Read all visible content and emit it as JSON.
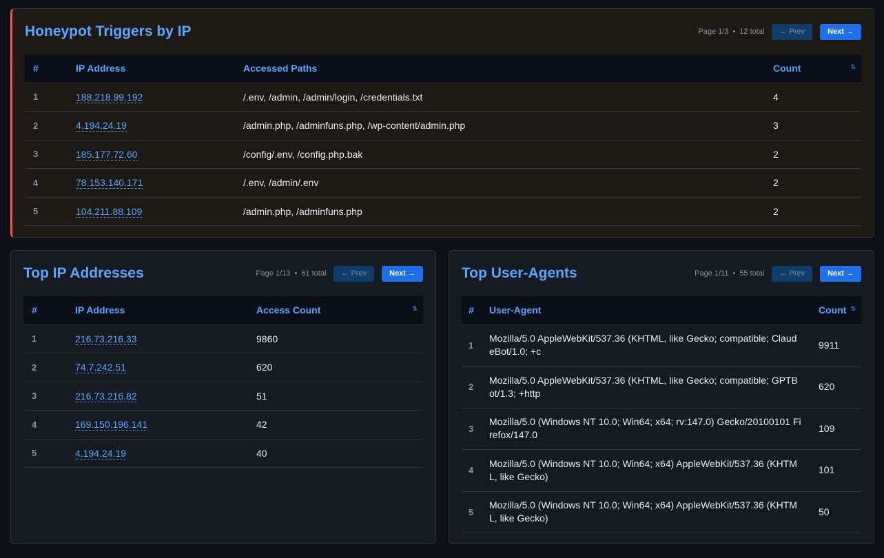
{
  "honeypot": {
    "title": "Honeypot Triggers by IP",
    "page": "Page 1/3",
    "total": "12 total",
    "prev": "← Prev",
    "next": "Next →",
    "columns": [
      "#",
      "IP Address",
      "Accessed Paths",
      "Count"
    ],
    "rows": [
      {
        "rank": "1",
        "ip": "188.218.99.192",
        "paths": "/.env, /admin, /admin/login, /credentials.txt",
        "count": "4"
      },
      {
        "rank": "2",
        "ip": "4.194.24.19",
        "paths": "/admin.php, /adminfuns.php, /wp-content/admin.php",
        "count": "3"
      },
      {
        "rank": "3",
        "ip": "185.177.72.60",
        "paths": "/config/.env, /config.php.bak",
        "count": "2"
      },
      {
        "rank": "4",
        "ip": "78.153.140.171",
        "paths": "/.env, /admin/.env",
        "count": "2"
      },
      {
        "rank": "5",
        "ip": "104.211.88.109",
        "paths": "/admin.php, /adminfuns.php",
        "count": "2"
      }
    ]
  },
  "top_ips": {
    "title": "Top IP Addresses",
    "page": "Page 1/13",
    "total": "61 total",
    "prev": "← Prev",
    "next": "Next →",
    "columns": [
      "#",
      "IP Address",
      "Access Count"
    ],
    "rows": [
      {
        "rank": "1",
        "ip": "216.73.216.33",
        "count": "9860"
      },
      {
        "rank": "2",
        "ip": "74.7.242.51",
        "count": "620"
      },
      {
        "rank": "3",
        "ip": "216.73.216.82",
        "count": "51"
      },
      {
        "rank": "4",
        "ip": "169.150.196.141",
        "count": "42"
      },
      {
        "rank": "5",
        "ip": "4.194.24.19",
        "count": "40"
      }
    ]
  },
  "top_uas": {
    "title": "Top User-Agents",
    "page": "Page 1/11",
    "total": "55 total",
    "prev": "← Prev",
    "next": "Next →",
    "columns": [
      "#",
      "User-Agent",
      "Count"
    ],
    "rows": [
      {
        "rank": "1",
        "ua": "Mozilla/5.0 AppleWebKit/537.36 (KHTML, like Gecko; compatible; ClaudeBot/1.0; +c",
        "count": "9911"
      },
      {
        "rank": "2",
        "ua": "Mozilla/5.0 AppleWebKit/537.36 (KHTML, like Gecko; compatible; GPTBot/1.3; +http",
        "count": "620"
      },
      {
        "rank": "3",
        "ua": "Mozilla/5.0 (Windows NT 10.0; Win64; x64; rv:147.0) Gecko/20100101 Firefox/147.0",
        "count": "109"
      },
      {
        "rank": "4",
        "ua": "Mozilla/5.0 (Windows NT 10.0; Win64; x64) AppleWebKit/537.36 (KHTML, like Gecko)",
        "count": "101"
      },
      {
        "rank": "5",
        "ua": "Mozilla/5.0 (Windows NT 10.0; Win64; x64) AppleWebKit/537.36 (KHTML, like Gecko)",
        "count": "50"
      }
    ]
  },
  "sort_icon": "sort-icon"
}
